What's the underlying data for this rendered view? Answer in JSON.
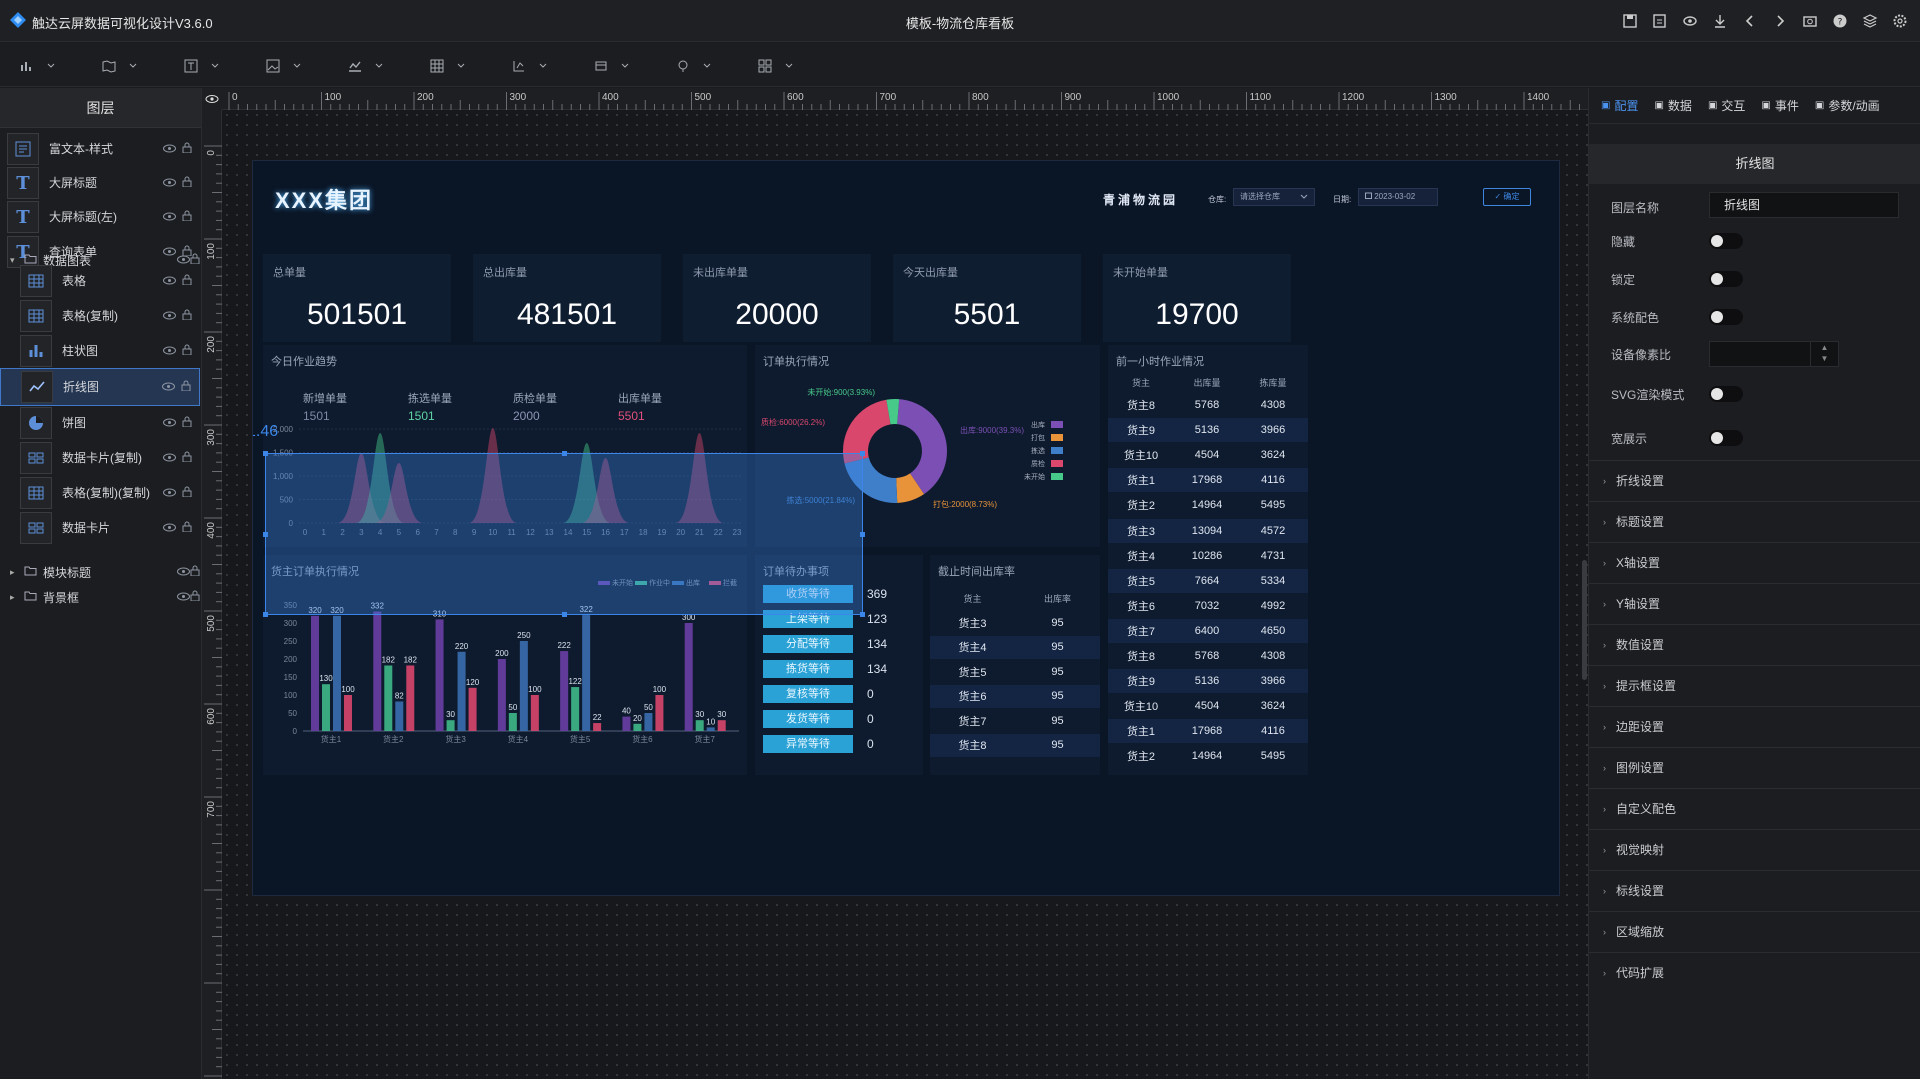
{
  "app": {
    "title": "触达云屏数据可视化设计V3.6.0",
    "document_title": "模板-物流仓库看板",
    "accent": "#3b86e8"
  },
  "top_icons": [
    "save-icon",
    "save-as-icon",
    "preview-icon",
    "download-icon",
    "undo-icon",
    "redo-icon",
    "screenshot-icon",
    "help-icon",
    "layers-icon",
    "settings-icon"
  ],
  "toolbar": {
    "tools": [
      "bar-chart-tool-icon",
      "map-tool-icon",
      "text-tool-icon",
      "image-tool-icon",
      "line-chart-tool-icon",
      "table-tool-icon",
      "control-tool-icon",
      "media-tool-icon",
      "interaction-tool-icon",
      "grid-tool-icon"
    ]
  },
  "layers": {
    "header": "图层",
    "items": [
      {
        "label": "富文本-样式",
        "icon": "rich-text-icon",
        "indent": false
      },
      {
        "label": "大屏标题",
        "icon": "text-icon",
        "indent": false
      },
      {
        "label": "大屏标题(左)",
        "icon": "text-icon",
        "indent": false
      },
      {
        "label": "查询表单",
        "icon": "text-icon",
        "indent": false
      }
    ],
    "group1": "数据图表",
    "children": [
      {
        "label": "表格",
        "icon": "table-icon"
      },
      {
        "label": "表格(复制)",
        "icon": "table-icon"
      },
      {
        "label": "柱状图",
        "icon": "bar-icon"
      },
      {
        "label": "折线图",
        "icon": "line-icon",
        "selected": true
      },
      {
        "label": "饼图",
        "icon": "pie-icon"
      },
      {
        "label": "数据卡片(复制)",
        "icon": "card-icon"
      },
      {
        "label": "表格(复制)(复制)",
        "icon": "table-icon"
      },
      {
        "label": "数据卡片",
        "icon": "card-icon"
      }
    ],
    "group2": "模块标题",
    "group3": "背景框"
  },
  "ruler": {
    "top": [
      "0",
      "100",
      "200",
      "300",
      "400",
      "500",
      "600",
      "700",
      "800",
      "900",
      "1000",
      "1100",
      "1200",
      "1300",
      "1400"
    ],
    "left": [
      "0",
      "100",
      "200",
      "300",
      "400",
      "500",
      "600",
      "700"
    ]
  },
  "coord_readout": "1.46",
  "dashboard": {
    "title": "XXX集团",
    "park": "青浦物流园",
    "warehouse_label": "仓库:",
    "warehouse_value": "请选择仓库",
    "date_label": "日期:",
    "date_value": "2023-03-02",
    "confirm": "确定",
    "kpis": [
      {
        "label": "总单量",
        "value": "501501"
      },
      {
        "label": "总出库量",
        "value": "481501"
      },
      {
        "label": "未出库单量",
        "value": "20000"
      },
      {
        "label": "今天出库量",
        "value": "5501"
      },
      {
        "label": "未开始单量",
        "value": "19700"
      }
    ],
    "trend": {
      "title": "今日作业趋势",
      "stats": [
        {
          "label": "新增单量",
          "value": "1501",
          "color": "#7d8aa6"
        },
        {
          "label": "拣选单量",
          "value": "1501",
          "color": "#5fd3a6"
        },
        {
          "label": "质检单量",
          "value": "2000",
          "color": "#8f95b5"
        },
        {
          "label": "出库单量",
          "value": "5501",
          "color": "#e2507a"
        }
      ],
      "yticks": [
        "2,000",
        "1,500",
        "1,000",
        "500",
        "0"
      ],
      "xticks": [
        "0",
        "1",
        "2",
        "3",
        "4",
        "5",
        "6",
        "7",
        "8",
        "9",
        "10",
        "11",
        "12",
        "13",
        "14",
        "15",
        "16",
        "17",
        "18",
        "19",
        "20",
        "21",
        "22",
        "23"
      ]
    },
    "order_exec": {
      "title": "订单执行情况",
      "slices": [
        {
          "name": "出库",
          "label": "出库:9000(39.3%)",
          "value": 9000,
          "color": "#7b4fb3"
        },
        {
          "name": "打包",
          "label": "打包:2000(8.73%)",
          "value": 2000,
          "color": "#e8933a"
        },
        {
          "name": "拣选",
          "label": "拣选:5000(21.84%)",
          "value": 5000,
          "color": "#3f7fc9"
        },
        {
          "name": "质检",
          "label": "质检:6000(26.2%)",
          "value": 6000,
          "color": "#d9476d"
        },
        {
          "name": "未开始",
          "label": "未开始:900(3.93%)",
          "value": 900,
          "color": "#47c98a"
        }
      ]
    },
    "hour_table": {
      "title": "前一小时作业情况",
      "headers": [
        "货主",
        "出库量",
        "拣库量"
      ],
      "rows": [
        [
          "货主8",
          "5768",
          "4308"
        ],
        [
          "货主9",
          "5136",
          "3966"
        ],
        [
          "货主10",
          "4504",
          "3624"
        ],
        [
          "货主1",
          "17968",
          "4116"
        ],
        [
          "货主2",
          "14964",
          "5495"
        ],
        [
          "货主3",
          "13094",
          "4572"
        ],
        [
          "货主4",
          "10286",
          "4731"
        ],
        [
          "货主5",
          "7664",
          "5334"
        ],
        [
          "货主6",
          "7032",
          "4992"
        ],
        [
          "货主7",
          "6400",
          "4650"
        ],
        [
          "货主8",
          "5768",
          "4308"
        ],
        [
          "货主9",
          "5136",
          "3966"
        ],
        [
          "货主10",
          "4504",
          "3624"
        ],
        [
          "货主1",
          "17968",
          "4116"
        ],
        [
          "货主2",
          "14964",
          "5495"
        ]
      ]
    },
    "owner_bars": {
      "title": "货主订单执行情况",
      "legend": [
        "未开始",
        "作业中",
        "出库",
        "拦截"
      ],
      "yticks": [
        "350",
        "300",
        "250",
        "200",
        "150",
        "100",
        "50",
        "0"
      ],
      "categories": [
        "货主1",
        "货主2",
        "货主3",
        "货主4",
        "货主5",
        "货主6",
        "货主7"
      ]
    },
    "todo": {
      "title": "订单待办事项",
      "items": [
        {
          "label": "收货等待",
          "value": "369"
        },
        {
          "label": "上架等待",
          "value": "123"
        },
        {
          "label": "分配等待",
          "value": "134"
        },
        {
          "label": "拣货等待",
          "value": "134"
        },
        {
          "label": "复核等待",
          "value": "0"
        },
        {
          "label": "发货等待",
          "value": "0"
        },
        {
          "label": "异常等待",
          "value": "0"
        }
      ]
    },
    "rate_table": {
      "title": "截止时间出库率",
      "headers": [
        "货主",
        "出库率"
      ],
      "rows": [
        [
          "货主3",
          "95"
        ],
        [
          "货主4",
          "95"
        ],
        [
          "货主5",
          "95"
        ],
        [
          "货主6",
          "95"
        ],
        [
          "货主7",
          "95"
        ],
        [
          "货主8",
          "95"
        ]
      ]
    }
  },
  "chart_data": [
    {
      "type": "bar",
      "title": "货主订单执行情况",
      "categories": [
        "货主1",
        "货主2",
        "货主3",
        "货主4",
        "货主5",
        "货主6",
        "货主7"
      ],
      "series": [
        {
          "name": "未开始",
          "values": [
            320,
            332,
            310,
            200,
            222,
            40,
            300
          ],
          "color": "#6a3fa5"
        },
        {
          "name": "作业中",
          "values": [
            130,
            182,
            30,
            50,
            122,
            20,
            30
          ],
          "color": "#3fb98a"
        },
        {
          "name": "出库",
          "values": [
            320,
            82,
            220,
            250,
            322,
            50,
            10
          ],
          "color": "#3a6fb0"
        },
        {
          "name": "拦截",
          "values": [
            100,
            182,
            120,
            100,
            22,
            100,
            30
          ],
          "color": "#d9476d"
        }
      ],
      "ylim": [
        0,
        350
      ]
    },
    {
      "type": "pie",
      "title": "订单执行情况",
      "labels": [
        "出库",
        "打包",
        "拣选",
        "质检",
        "未开始"
      ],
      "values": [
        9000,
        2000,
        5000,
        6000,
        900
      ]
    }
  ],
  "props": {
    "tabs": [
      {
        "label": "配置",
        "icon": "config-icon",
        "active": true
      },
      {
        "label": "数据",
        "icon": "data-icon"
      },
      {
        "label": "交互",
        "icon": "interact-icon"
      },
      {
        "label": "事件",
        "icon": "event-icon"
      },
      {
        "label": "参数/动画",
        "icon": "anim-icon"
      }
    ],
    "header": "折线图",
    "name_label": "图层名称",
    "name_value": "折线图",
    "hide": "隐藏",
    "lock": "锁定",
    "system_color": "系统配色",
    "pixel_ratio": "设备像素比",
    "svg_mode": "SVG渲染模式",
    "show": "宽展示",
    "sections": [
      "折线设置",
      "标题设置",
      "X轴设置",
      "Y轴设置",
      "数值设置",
      "提示框设置",
      "边距设置",
      "图例设置",
      "自定义配色",
      "视觉映射",
      "标线设置",
      "区域缩放",
      "代码扩展"
    ]
  }
}
